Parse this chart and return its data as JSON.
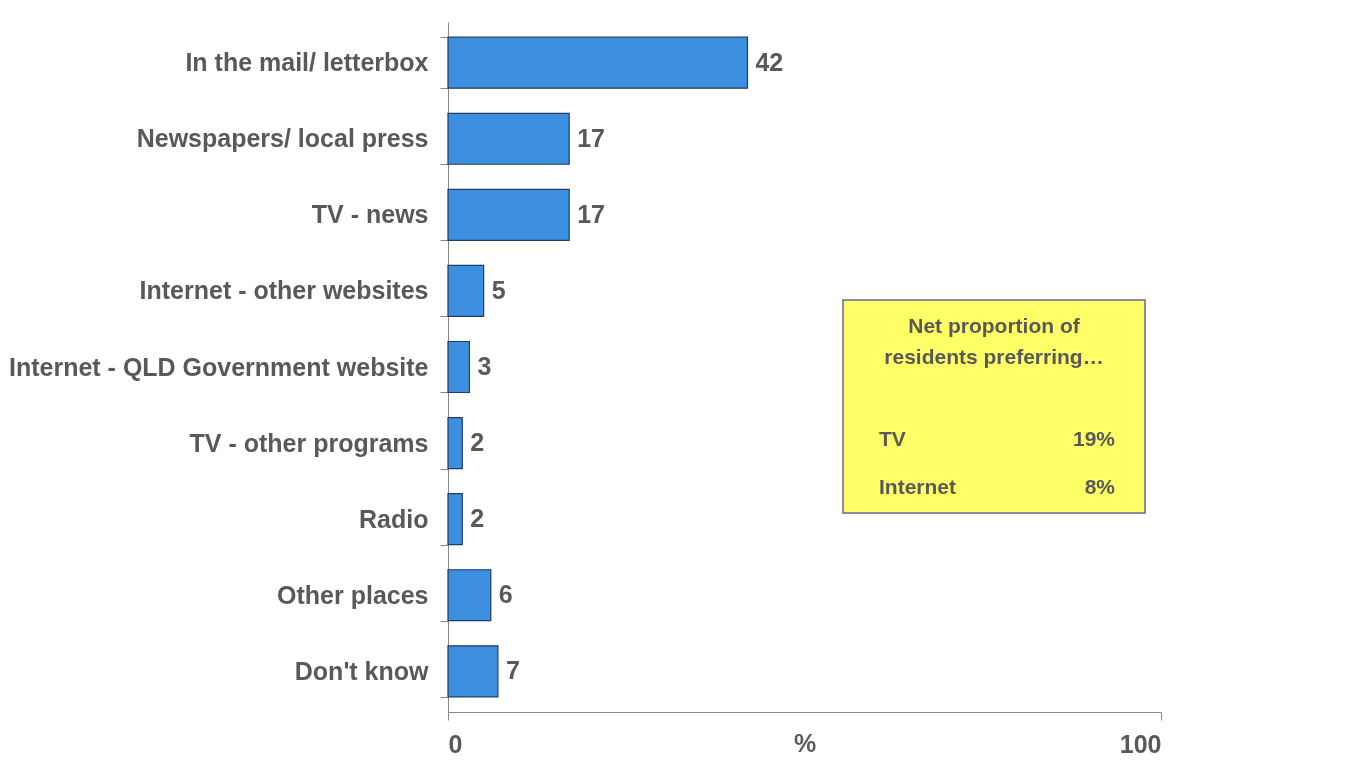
{
  "chart_data": {
    "type": "bar",
    "orientation": "horizontal",
    "categories": [
      "In the mail/ letterbox",
      "Newspapers/ local press",
      "TV - news ",
      "Internet - other websites",
      "Internet - QLD Government website",
      "TV - other programs",
      "Radio",
      "Other places",
      "Don't know"
    ],
    "values": [
      42,
      17,
      17,
      5,
      3,
      2,
      2,
      6,
      7
    ],
    "color": "#3d8fe0",
    "xlabel": "%",
    "xlim": [
      0,
      100
    ],
    "xticks": [
      0,
      100
    ],
    "grid": false,
    "data_labels": true,
    "annotations": [
      "Net proportion of residents preferring…",
      "TV",
      "19%",
      "Internet",
      "8%"
    ]
  }
}
